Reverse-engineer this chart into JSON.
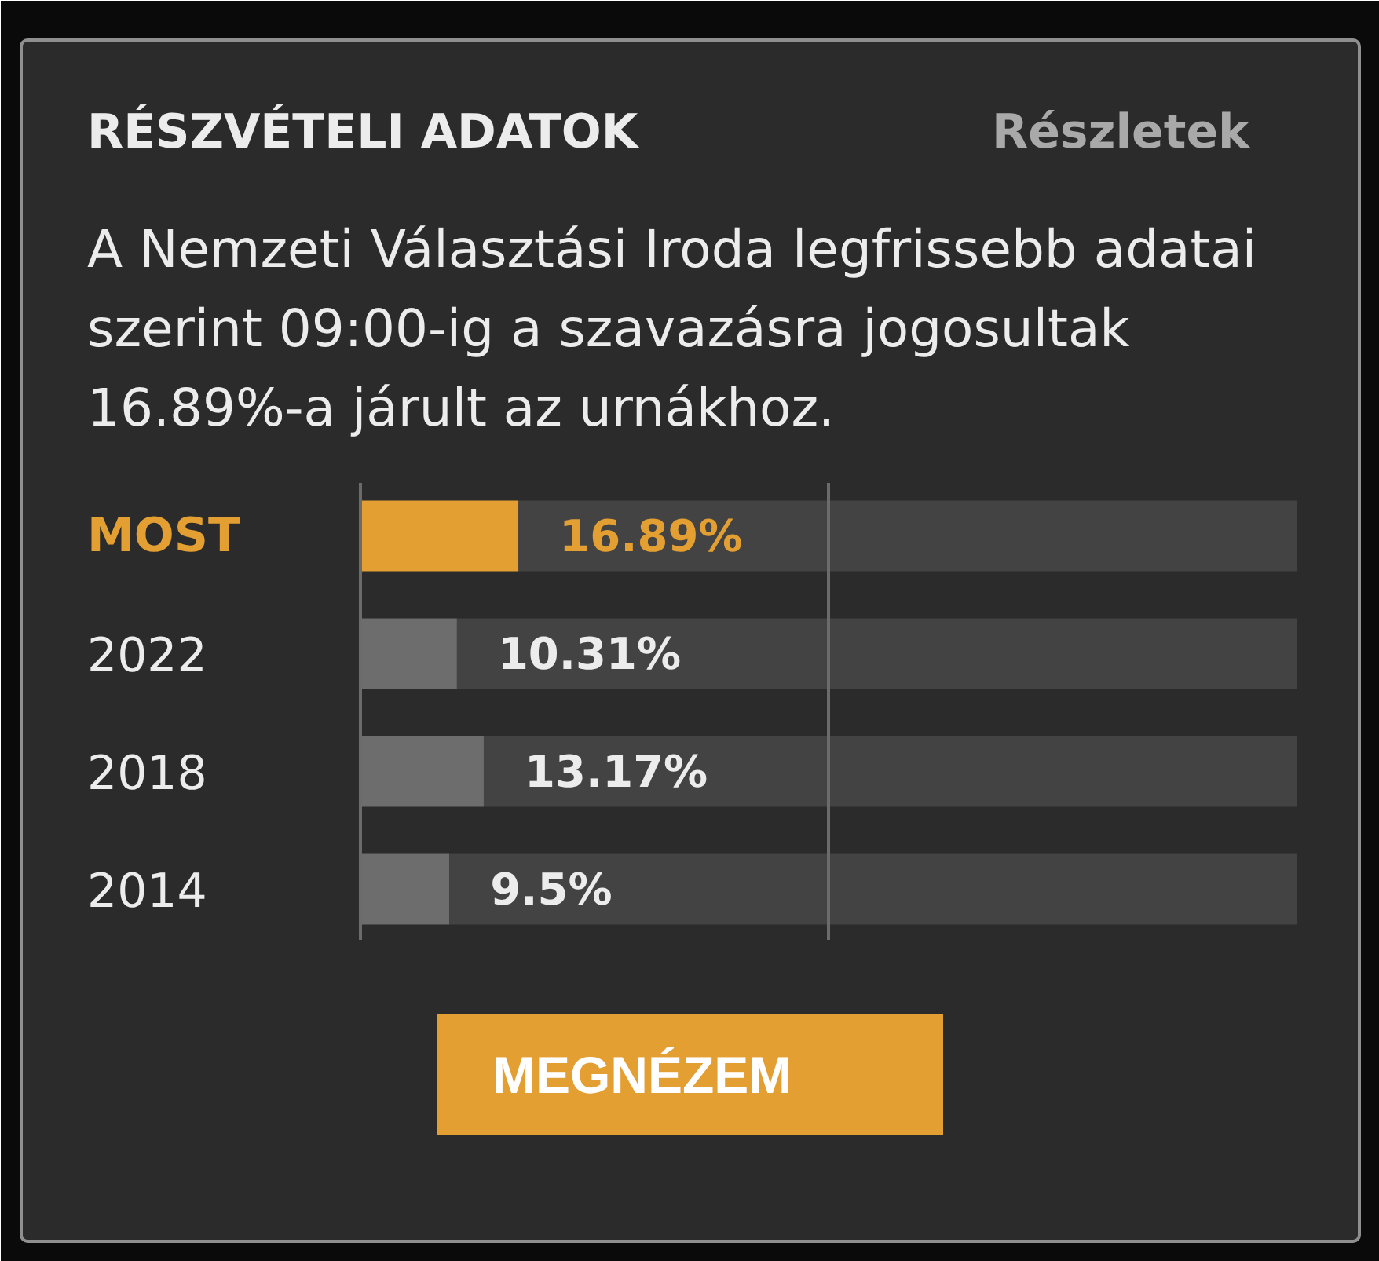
{
  "chart_data": {
    "type": "bar",
    "orientation": "horizontal",
    "stacked": true,
    "title": "RÉSZVÉTELI ADATOK",
    "subtitle": "A Nemzeti Választási Iroda legfrissebb adatai szerint 09:00-ig a szavazásra jogosultak 16.89%-a járult az urnákhoz.",
    "annotations": [
      "Részletek",
      "MEGNÉZEM"
    ],
    "categories": [
      "MOST",
      "2022",
      "2018",
      "2014"
    ],
    "series": [
      {
        "colors": [
          "#e39f32",
          "#6d6d6d",
          "#6d6d6d",
          "#6d6d6d"
        ],
        "values": [
          16.89,
          10.31,
          13.17,
          9.5
        ],
        "value_labels": [
          "16.89%",
          "10.31%",
          "13.17%",
          "9.5%"
        ]
      },
      {
        "color": "#434343",
        "values": [
          83.11,
          89.69,
          86.83,
          90.5
        ]
      }
    ],
    "xlim": [
      0,
      100
    ],
    "tick_labels": "y",
    "ref_lines": [
      {
        "axis": "x",
        "value": 50,
        "color": "#6b6b6b"
      }
    ]
  }
}
